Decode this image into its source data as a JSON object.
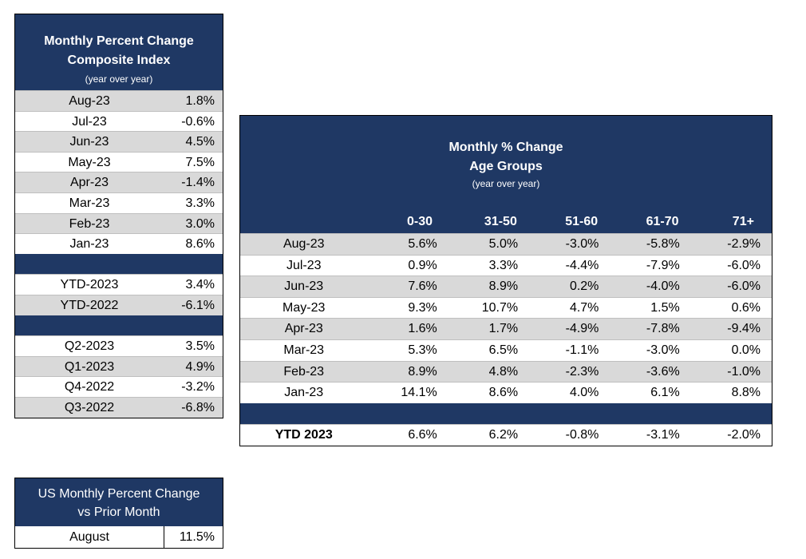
{
  "composite": {
    "title_line1": "Monthly Percent Change",
    "title_line2": "Composite Index",
    "subtitle": "(year over year)",
    "monthly": [
      {
        "label": "Aug-23",
        "value": "1.8%"
      },
      {
        "label": "Jul-23",
        "value": "-0.6%"
      },
      {
        "label": "Jun-23",
        "value": "4.5%"
      },
      {
        "label": "May-23",
        "value": "7.5%"
      },
      {
        "label": "Apr-23",
        "value": "-1.4%"
      },
      {
        "label": "Mar-23",
        "value": "3.3%"
      },
      {
        "label": "Feb-23",
        "value": "3.0%"
      },
      {
        "label": "Jan-23",
        "value": "8.6%"
      }
    ],
    "ytd": [
      {
        "label": "YTD-2023",
        "value": "3.4%"
      },
      {
        "label": "YTD-2022",
        "value": "-6.1%"
      }
    ],
    "quarters": [
      {
        "label": "Q2-2023",
        "value": "3.5%"
      },
      {
        "label": "Q1-2023",
        "value": "4.9%"
      },
      {
        "label": "Q4-2022",
        "value": "-3.2%"
      },
      {
        "label": "Q3-2022",
        "value": "-6.8%"
      }
    ]
  },
  "age_groups": {
    "title_line1": "Monthly % Change",
    "title_line2": "Age Groups",
    "subtitle": "(year over year)",
    "columns": [
      "0-30",
      "31-50",
      "51-60",
      "61-70",
      "71+"
    ],
    "rows": [
      {
        "label": "Aug-23",
        "values": [
          "5.6%",
          "5.0%",
          "-3.0%",
          "-5.8%",
          "-2.9%"
        ]
      },
      {
        "label": "Jul-23",
        "values": [
          "0.9%",
          "3.3%",
          "-4.4%",
          "-7.9%",
          "-6.0%"
        ]
      },
      {
        "label": "Jun-23",
        "values": [
          "7.6%",
          "8.9%",
          "0.2%",
          "-4.0%",
          "-6.0%"
        ]
      },
      {
        "label": "May-23",
        "values": [
          "9.3%",
          "10.7%",
          "4.7%",
          "1.5%",
          "0.6%"
        ]
      },
      {
        "label": "Apr-23",
        "values": [
          "1.6%",
          "1.7%",
          "-4.9%",
          "-7.8%",
          "-9.4%"
        ]
      },
      {
        "label": "Mar-23",
        "values": [
          "5.3%",
          "6.5%",
          "-1.1%",
          "-3.0%",
          "0.0%"
        ]
      },
      {
        "label": "Feb-23",
        "values": [
          "8.9%",
          "4.8%",
          "-2.3%",
          "-3.6%",
          "-1.0%"
        ]
      },
      {
        "label": "Jan-23",
        "values": [
          "14.1%",
          "8.6%",
          "4.0%",
          "6.1%",
          "8.8%"
        ]
      }
    ],
    "ytd": {
      "label": "YTD 2023",
      "values": [
        "6.6%",
        "6.2%",
        "-0.8%",
        "-3.1%",
        "-2.0%"
      ]
    }
  },
  "us_monthly": {
    "title_line1": "US Monthly Percent Change",
    "title_line2": "vs Prior Month",
    "label": "August",
    "value": "11.5%"
  },
  "colors": {
    "header": "#1f3864",
    "shade": "#d9d9d9"
  }
}
